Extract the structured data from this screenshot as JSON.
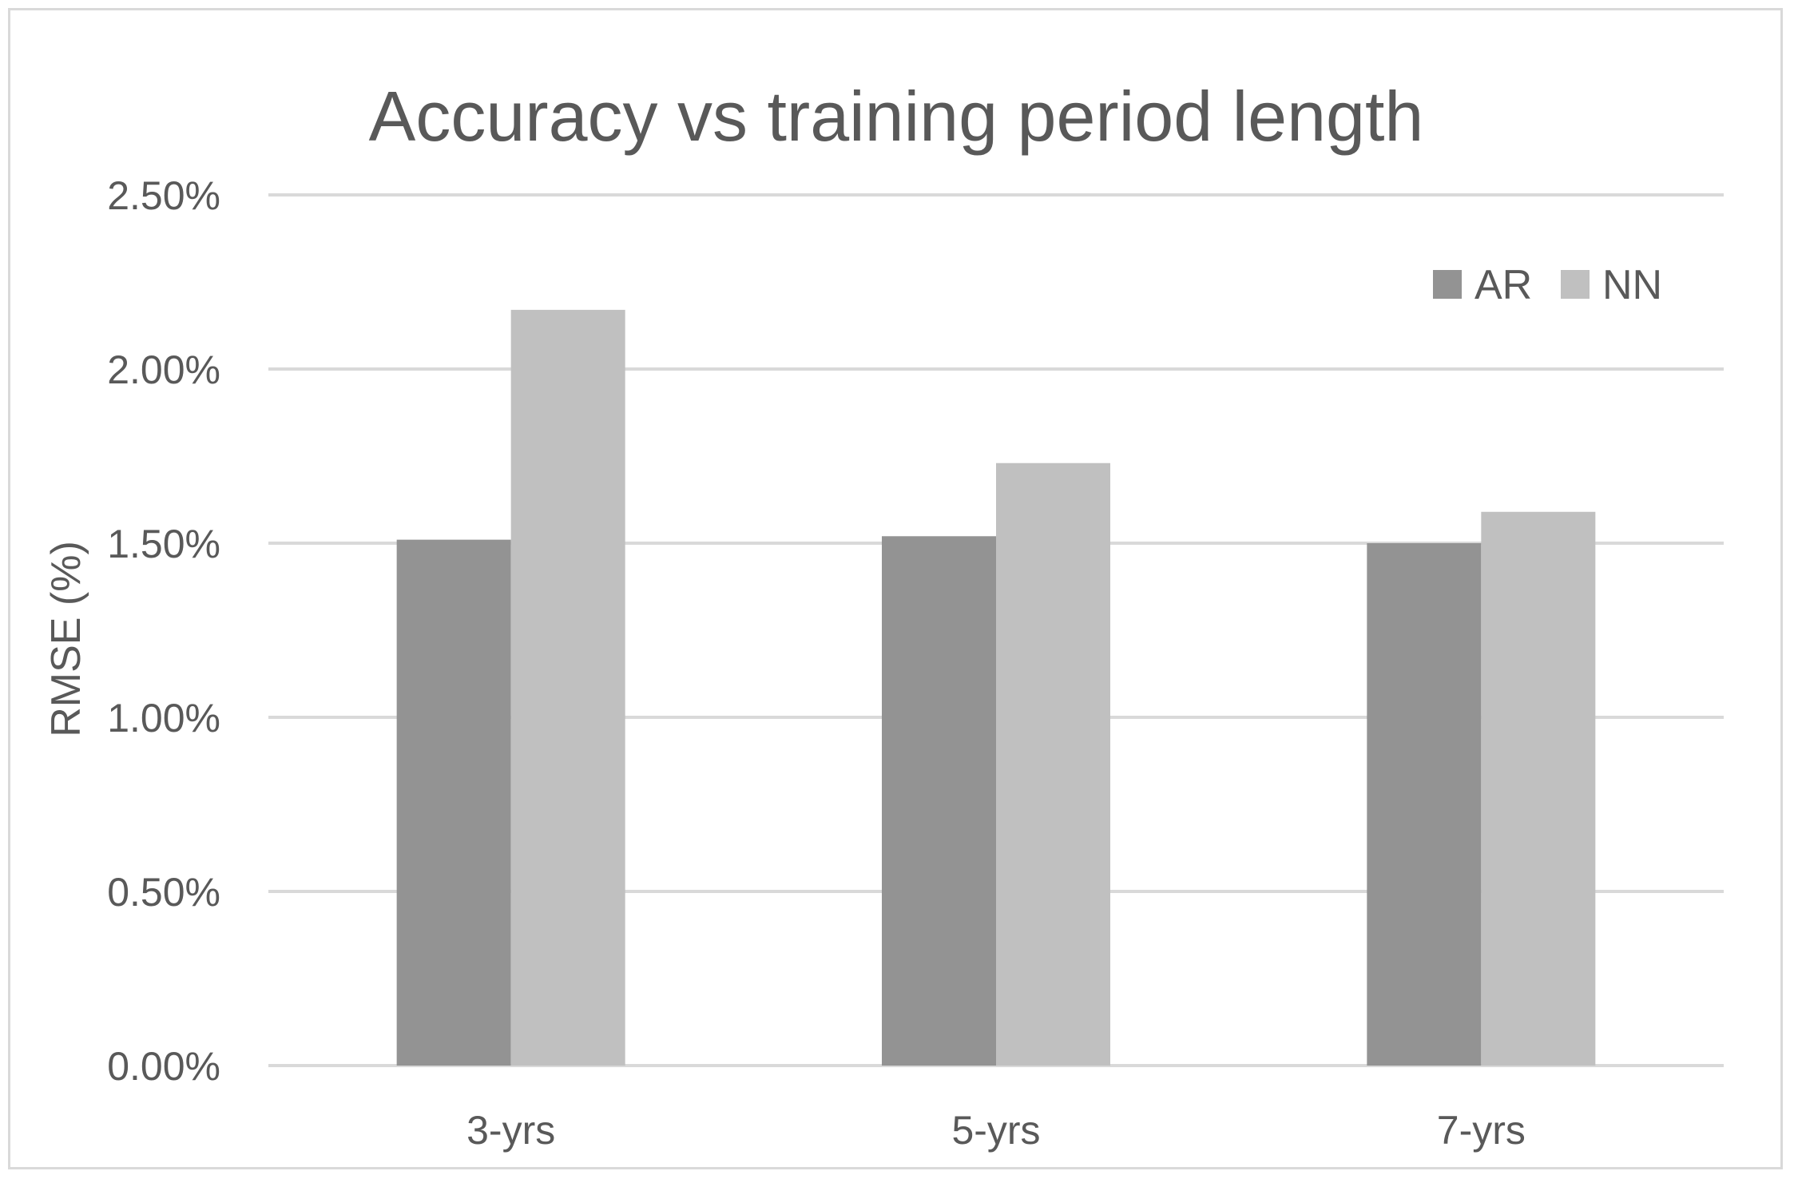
{
  "chart_data": {
    "type": "bar",
    "title": "Accuracy vs training period length",
    "xlabel": "",
    "ylabel": "RMSE (%)",
    "categories": [
      "3-yrs",
      "5-yrs",
      "7-yrs"
    ],
    "series": [
      {
        "name": "AR",
        "color": "#939393",
        "values": [
          1.51,
          1.52,
          1.5
        ]
      },
      {
        "name": "NN",
        "color": "#c0c0c0",
        "values": [
          2.17,
          1.73,
          1.59
        ]
      }
    ],
    "ylim": [
      0,
      2.5
    ],
    "yticks": [
      0,
      0.5,
      1.0,
      1.5,
      2.0,
      2.5
    ],
    "ytick_labels": [
      "0.00%",
      "0.50%",
      "1.00%",
      "1.50%",
      "2.00%",
      "2.50%"
    ],
    "grid": true,
    "legend_position": "top-right",
    "gridline_color": "#d9d9d9",
    "text_color": "#595959"
  }
}
